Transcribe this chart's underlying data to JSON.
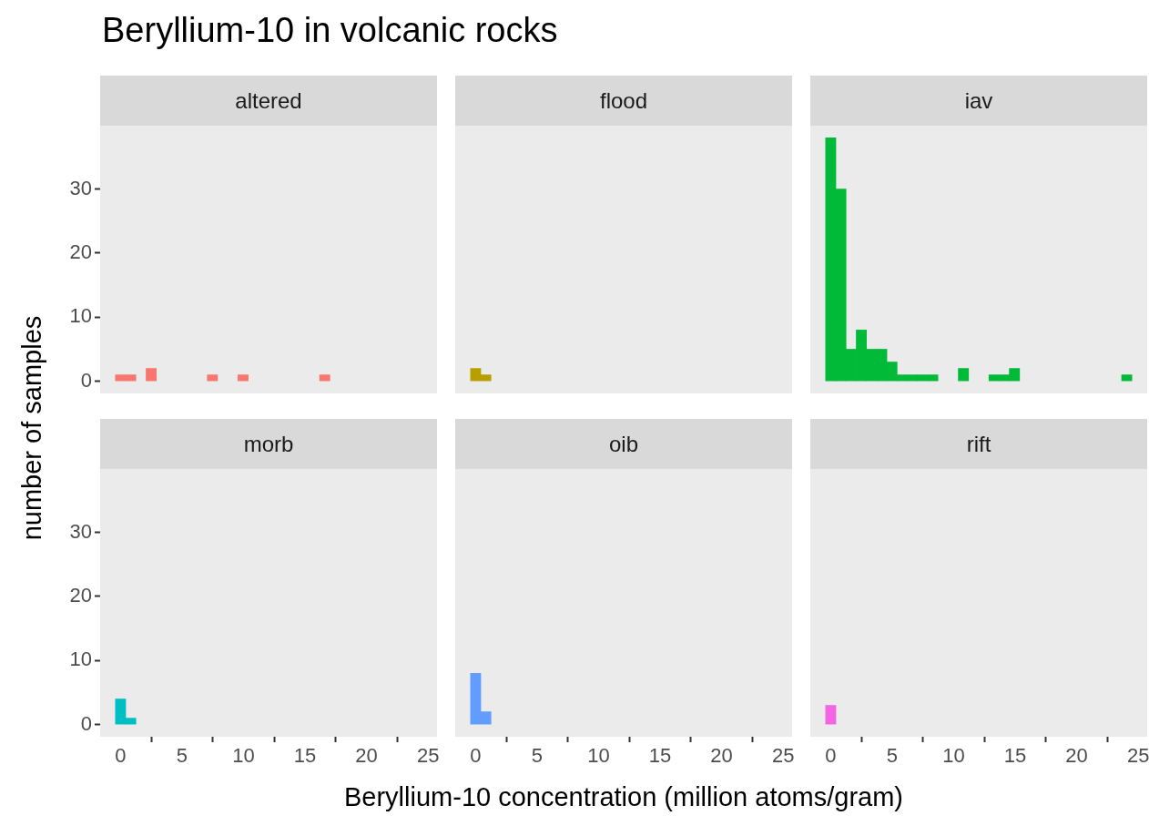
{
  "chart_data": [
    {
      "type": "histogram",
      "title": "Beryllium-10 in volcanic rocks",
      "subtitle": "altered",
      "ylabel": "number of samples",
      "color": "#f8766d",
      "tick_labels": "y",
      "bins": [
        -0.415,
        0.415,
        1.245,
        2.075,
        2.905,
        3.735,
        4.565,
        5.395,
        6.225,
        7.055,
        7.885,
        8.715,
        9.545,
        10.375,
        11.205,
        12.035,
        12.865,
        13.695,
        14.525,
        15.355,
        16.185,
        17.015,
        17.845,
        18.675,
        19.505,
        20.335,
        21.165,
        21.995,
        22.825,
        23.655,
        24.485
      ],
      "values": [
        1,
        1,
        0,
        2,
        0,
        0,
        0,
        0,
        0,
        1,
        0,
        0,
        1,
        0,
        0,
        0,
        0,
        0,
        0,
        0,
        1,
        0,
        0,
        0,
        0,
        0,
        0,
        0,
        0,
        0
      ],
      "xlim": [
        -1.66,
        25.73
      ],
      "ylim": [
        -1.9,
        39.9
      ],
      "xticks": [
        0,
        5,
        10,
        15,
        20,
        25
      ],
      "yticks": [
        0,
        10,
        20,
        30
      ]
    },
    {
      "type": "histogram",
      "subtitle": "flood",
      "color": "#b79f00",
      "tick_labels": false,
      "bins": [
        -0.415,
        0.415,
        1.245,
        2.075,
        2.905,
        3.735,
        4.565,
        5.395,
        6.225,
        7.055,
        7.885,
        8.715,
        9.545,
        10.375,
        11.205,
        12.035,
        12.865,
        13.695,
        14.525,
        15.355,
        16.185,
        17.015,
        17.845,
        18.675,
        19.505,
        20.335,
        21.165,
        21.995,
        22.825,
        23.655,
        24.485
      ],
      "values": [
        2,
        1,
        0,
        0,
        0,
        0,
        0,
        0,
        0,
        0,
        0,
        0,
        0,
        0,
        0,
        0,
        0,
        0,
        0,
        0,
        0,
        0,
        0,
        0,
        0,
        0,
        0,
        0,
        0,
        0
      ],
      "xlim": [
        -1.66,
        25.73
      ],
      "ylim": [
        -1.9,
        39.9
      ],
      "xticks": [
        0,
        5,
        10,
        15,
        20,
        25
      ],
      "yticks": [
        0,
        10,
        20,
        30
      ]
    },
    {
      "type": "histogram",
      "subtitle": "iav",
      "color": "#00ba38",
      "tick_labels": false,
      "bins": [
        -0.415,
        0.415,
        1.245,
        2.075,
        2.905,
        3.735,
        4.565,
        5.395,
        6.225,
        7.055,
        7.885,
        8.715,
        9.545,
        10.375,
        11.205,
        12.035,
        12.865,
        13.695,
        14.525,
        15.355,
        16.185,
        17.015,
        17.845,
        18.675,
        19.505,
        20.335,
        21.165,
        21.995,
        22.825,
        23.655,
        24.485
      ],
      "values": [
        38,
        30,
        5,
        8,
        5,
        5,
        3,
        1,
        1,
        1,
        1,
        0,
        0,
        2,
        0,
        0,
        1,
        1,
        2,
        0,
        0,
        0,
        0,
        0,
        0,
        0,
        0,
        0,
        0,
        1
      ],
      "xlim": [
        -1.66,
        25.73
      ],
      "ylim": [
        -1.9,
        39.9
      ],
      "xticks": [
        0,
        5,
        10,
        15,
        20,
        25
      ],
      "yticks": [
        0,
        10,
        20,
        30
      ]
    },
    {
      "type": "histogram",
      "subtitle": "morb",
      "color": "#00bfc4",
      "bins": [
        -0.415,
        0.415,
        1.245,
        2.075,
        2.905,
        3.735,
        4.565,
        5.395,
        6.225,
        7.055,
        7.885,
        8.715,
        9.545,
        10.375,
        11.205,
        12.035,
        12.865,
        13.695,
        14.525,
        15.355,
        16.185,
        17.015,
        17.845,
        18.675,
        19.505,
        20.335,
        21.165,
        21.995,
        22.825,
        23.655,
        24.485
      ],
      "values": [
        4,
        1,
        0,
        0,
        0,
        0,
        0,
        0,
        0,
        0,
        0,
        0,
        0,
        0,
        0,
        0,
        0,
        0,
        0,
        0,
        0,
        0,
        0,
        0,
        0,
        0,
        0,
        0,
        0,
        0
      ],
      "xlim": [
        -1.66,
        25.73
      ],
      "ylim": [
        -1.9,
        39.9
      ],
      "xticks": [
        0,
        5,
        10,
        15,
        20,
        25
      ],
      "yticks": [
        0,
        10,
        20,
        30
      ]
    },
    {
      "type": "histogram",
      "subtitle": "oib",
      "xlabel": "Beryllium-10 concentration (million atoms/gram)",
      "color": "#619cff",
      "tick_labels": "x",
      "bins": [
        -0.415,
        0.415,
        1.245,
        2.075,
        2.905,
        3.735,
        4.565,
        5.395,
        6.225,
        7.055,
        7.885,
        8.715,
        9.545,
        10.375,
        11.205,
        12.035,
        12.865,
        13.695,
        14.525,
        15.355,
        16.185,
        17.015,
        17.845,
        18.675,
        19.505,
        20.335,
        21.165,
        21.995,
        22.825,
        23.655,
        24.485
      ],
      "values": [
        8,
        2,
        0,
        0,
        0,
        0,
        0,
        0,
        0,
        0,
        0,
        0,
        0,
        0,
        0,
        0,
        0,
        0,
        0,
        0,
        0,
        0,
        0,
        0,
        0,
        0,
        0,
        0,
        0,
        0
      ],
      "xlim": [
        -1.66,
        25.73
      ],
      "ylim": [
        -1.9,
        39.9
      ],
      "xticks": [
        0,
        5,
        10,
        15,
        20,
        25
      ],
      "yticks": [
        0,
        10,
        20,
        30
      ]
    },
    {
      "type": "histogram",
      "subtitle": "rift",
      "color": "#f564e3",
      "tick_labels": "x",
      "bins": [
        -0.415,
        0.415,
        1.245,
        2.075,
        2.905,
        3.735,
        4.565,
        5.395,
        6.225,
        7.055,
        7.885,
        8.715,
        9.545,
        10.375,
        11.205,
        12.035,
        12.865,
        13.695,
        14.525,
        15.355,
        16.185,
        17.015,
        17.845,
        18.675,
        19.505,
        20.335,
        21.165,
        21.995,
        22.825,
        23.655,
        24.485
      ],
      "values": [
        3,
        0,
        0,
        0,
        0,
        0,
        0,
        0,
        0,
        0,
        0,
        0,
        0,
        0,
        0,
        0,
        0,
        0,
        0,
        0,
        0,
        0,
        0,
        0,
        0,
        0,
        0,
        0,
        0,
        0
      ],
      "xlim": [
        -1.66,
        25.73
      ],
      "ylim": [
        -1.9,
        39.9
      ],
      "xticks": [
        0,
        5,
        10,
        15,
        20,
        25
      ],
      "yticks": [
        0,
        10,
        20,
        30
      ]
    }
  ]
}
